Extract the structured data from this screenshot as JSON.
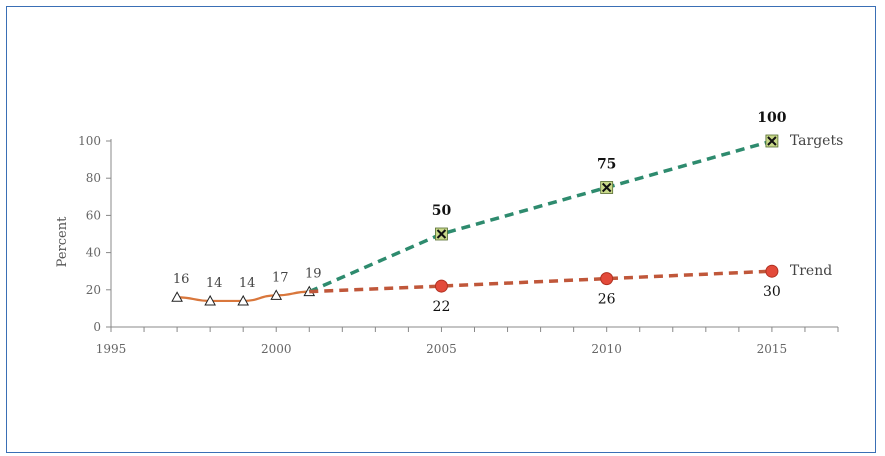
{
  "chart_data": {
    "type": "line",
    "title": "",
    "xlabel": "",
    "ylabel": "Percent",
    "xlim": [
      1995,
      2017
    ],
    "ylim": [
      0,
      100
    ],
    "x_ticks": [
      1995,
      2000,
      2005,
      2010,
      2015
    ],
    "x_tick_labels": [
      "1995",
      "2000",
      "2005",
      "2010",
      "2015"
    ],
    "y_ticks": [
      0,
      20,
      40,
      60,
      80,
      100
    ],
    "y_tick_labels": [
      "0",
      "20",
      "40",
      "60",
      "80",
      "100"
    ],
    "grid": false,
    "series": [
      {
        "name": "",
        "style": "solid",
        "marker": "triangle",
        "color": "#d9773c",
        "x": [
          1997,
          1998,
          1999,
          2000,
          2001
        ],
        "y": [
          16,
          14,
          14,
          17,
          19
        ],
        "labels": [
          "16",
          "14",
          "14",
          "17",
          "19"
        ]
      },
      {
        "name": "Targets",
        "style": "dashed",
        "marker": "x-square",
        "color": "#2e8b6e",
        "marker_color": "#c9d98a",
        "x": [
          2001,
          2005,
          2010,
          2015
        ],
        "y": [
          19,
          50,
          75,
          100
        ],
        "labels": [
          "",
          "50",
          "75",
          "100"
        ]
      },
      {
        "name": "Trend",
        "style": "dashed",
        "marker": "circle",
        "color": "#c0573a",
        "marker_color": "#e34a3a",
        "x": [
          2001,
          2005,
          2010,
          2015
        ],
        "y": [
          19,
          22,
          26,
          30
        ],
        "labels": [
          "",
          "22",
          "26",
          "30"
        ]
      }
    ]
  }
}
